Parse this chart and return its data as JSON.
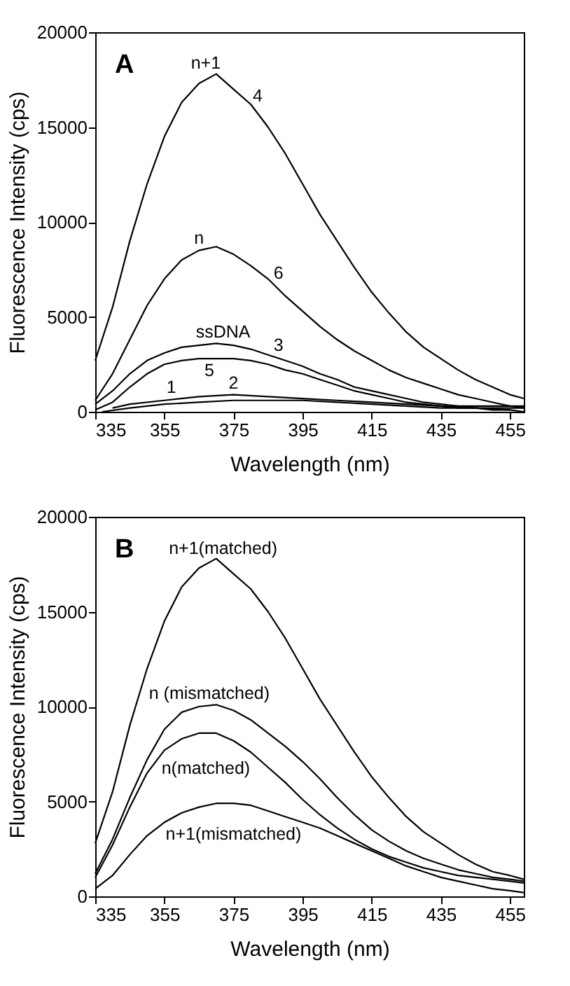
{
  "chart_data": [
    {
      "type": "line",
      "xlabel": "Wavelength (nm)",
      "ylabel": "Fluorescence Intensity (cps)",
      "xlim": [
        335,
        459
      ],
      "xticks": [
        335,
        355,
        375,
        395,
        415,
        435,
        455
      ],
      "ylim": [
        0,
        20000
      ],
      "yticks": [
        0,
        5000,
        10000,
        15000,
        20000
      ],
      "grid": false,
      "legend": false,
      "marker": "none",
      "line_style": "solid",
      "annotations": [
        "A",
        {
          "text": "n+1",
          "x": 367,
          "y": 17500
        },
        {
          "text": "4",
          "x": 382,
          "y": 15720
        },
        {
          "text": "n",
          "x": 365,
          "y": 8500
        },
        {
          "text": "6",
          "x": 388,
          "y": 6460
        },
        {
          "text": "ssDNA",
          "x": 372,
          "y": 3540
        },
        {
          "text": "3",
          "x": 388,
          "y": 2820
        },
        {
          "text": "5",
          "x": 368,
          "y": 2800
        },
        {
          "text": "1",
          "x": 357,
          "y": 640
        },
        {
          "text": "2",
          "x": 375,
          "y": 600
        }
      ],
      "x": [
        335,
        340,
        345,
        350,
        355,
        360,
        365,
        370,
        375,
        380,
        385,
        390,
        395,
        400,
        405,
        410,
        415,
        420,
        425,
        430,
        435,
        440,
        445,
        450,
        455,
        459
      ],
      "series": [
        {
          "color": "#000000",
          "values": [
            2700,
            5500,
            9000,
            12000,
            14500,
            16300,
            17300,
            17800,
            17000,
            16200,
            15000,
            13600,
            12000,
            10400,
            9000,
            7600,
            6300,
            5200,
            4200,
            3400,
            2800,
            2200,
            1700,
            1300,
            900,
            700
          ]
        },
        {
          "color": "#000000",
          "values": [
            600,
            2000,
            3800,
            5600,
            7000,
            8000,
            8500,
            8700,
            8300,
            7700,
            7000,
            6100,
            5300,
            4500,
            3800,
            3200,
            2700,
            2200,
            1800,
            1500,
            1200,
            900,
            700,
            500,
            300,
            200
          ]
        },
        {
          "color": "#000000",
          "values": [
            400,
            1100,
            2000,
            2700,
            3100,
            3400,
            3500,
            3600,
            3500,
            3300,
            3000,
            2700,
            2400,
            2000,
            1700,
            1300,
            1100,
            900,
            700,
            500,
            400,
            300,
            300,
            300,
            300,
            300
          ]
        },
        {
          "color": "#000000",
          "values": [
            100,
            500,
            1300,
            2000,
            2500,
            2700,
            2800,
            2800,
            2800,
            2700,
            2500,
            2200,
            2000,
            1700,
            1400,
            1100,
            900,
            700,
            500,
            400,
            300,
            200,
            200,
            100,
            100,
            0
          ]
        },
        {
          "color": "#000000",
          "x": [
            340,
            345,
            355,
            365,
            375,
            385,
            395,
            405,
            415,
            425,
            435,
            445,
            455,
            459
          ],
          "values": [
            200,
            400,
            600,
            800,
            900,
            800,
            700,
            600,
            500,
            400,
            300,
            200,
            200,
            200
          ]
        },
        {
          "color": "#000000",
          "x": [
            337,
            345,
            355,
            365,
            375,
            385,
            395,
            405,
            415,
            425,
            435,
            445,
            455
          ],
          "values": [
            0,
            200,
            400,
            500,
            600,
            600,
            600,
            500,
            400,
            300,
            200,
            200,
            100
          ]
        }
      ]
    },
    {
      "type": "line",
      "xlabel": "Wavelength (nm)",
      "ylabel": "Fluorescence Intensity (cps)",
      "xlim": [
        335,
        459
      ],
      "xticks": [
        335,
        355,
        375,
        395,
        415,
        435,
        455
      ],
      "ylim": [
        0,
        20000
      ],
      "yticks": [
        0,
        5000,
        10000,
        15000,
        20000
      ],
      "grid": false,
      "legend": false,
      "marker": "none",
      "line_style": "solid",
      "annotations": [
        "B",
        {
          "text": "n+1(matched)",
          "x": 372,
          "y": 17480
        },
        {
          "text": "n (mismatched)",
          "x": 368,
          "y": 10100
        },
        {
          "text": "n(matched)",
          "x": 367,
          "y": 8600
        },
        {
          "text": "n+1(mismatched)",
          "x": 375,
          "y": 4900
        }
      ],
      "x": [
        335,
        340,
        345,
        350,
        355,
        360,
        365,
        370,
        375,
        380,
        385,
        390,
        395,
        400,
        405,
        410,
        415,
        420,
        425,
        430,
        435,
        440,
        445,
        450,
        455,
        459
      ],
      "series": [
        {
          "color": "#000000",
          "values": [
            2800,
            5500,
            9000,
            12000,
            14500,
            16300,
            17300,
            17800,
            17000,
            16200,
            15000,
            13600,
            12000,
            10400,
            9000,
            7600,
            6300,
            5200,
            4200,
            3400,
            2800,
            2200,
            1700,
            1300,
            1100,
            900
          ]
        },
        {
          "color": "#000000",
          "values": [
            1200,
            3000,
            5200,
            7200,
            8800,
            9700,
            10000,
            10100,
            9800,
            9300,
            8600,
            7900,
            7100,
            6200,
            5200,
            4300,
            3500,
            2900,
            2400,
            2000,
            1700,
            1400,
            1200,
            1000,
            900,
            800
          ]
        },
        {
          "color": "#000000",
          "values": [
            1000,
            2700,
            4700,
            6500,
            7700,
            8300,
            8600,
            8600,
            8200,
            7600,
            6800,
            6000,
            5100,
            4300,
            3600,
            3000,
            2500,
            2100,
            1800,
            1500,
            1300,
            1100,
            1000,
            900,
            800,
            700
          ]
        },
        {
          "color": "#000000",
          "values": [
            400,
            1100,
            2200,
            3200,
            3900,
            4400,
            4700,
            4900,
            4900,
            4800,
            4500,
            4200,
            3900,
            3600,
            3200,
            2800,
            2400,
            2000,
            1600,
            1300,
            1000,
            800,
            600,
            400,
            300,
            200
          ]
        }
      ]
    }
  ]
}
